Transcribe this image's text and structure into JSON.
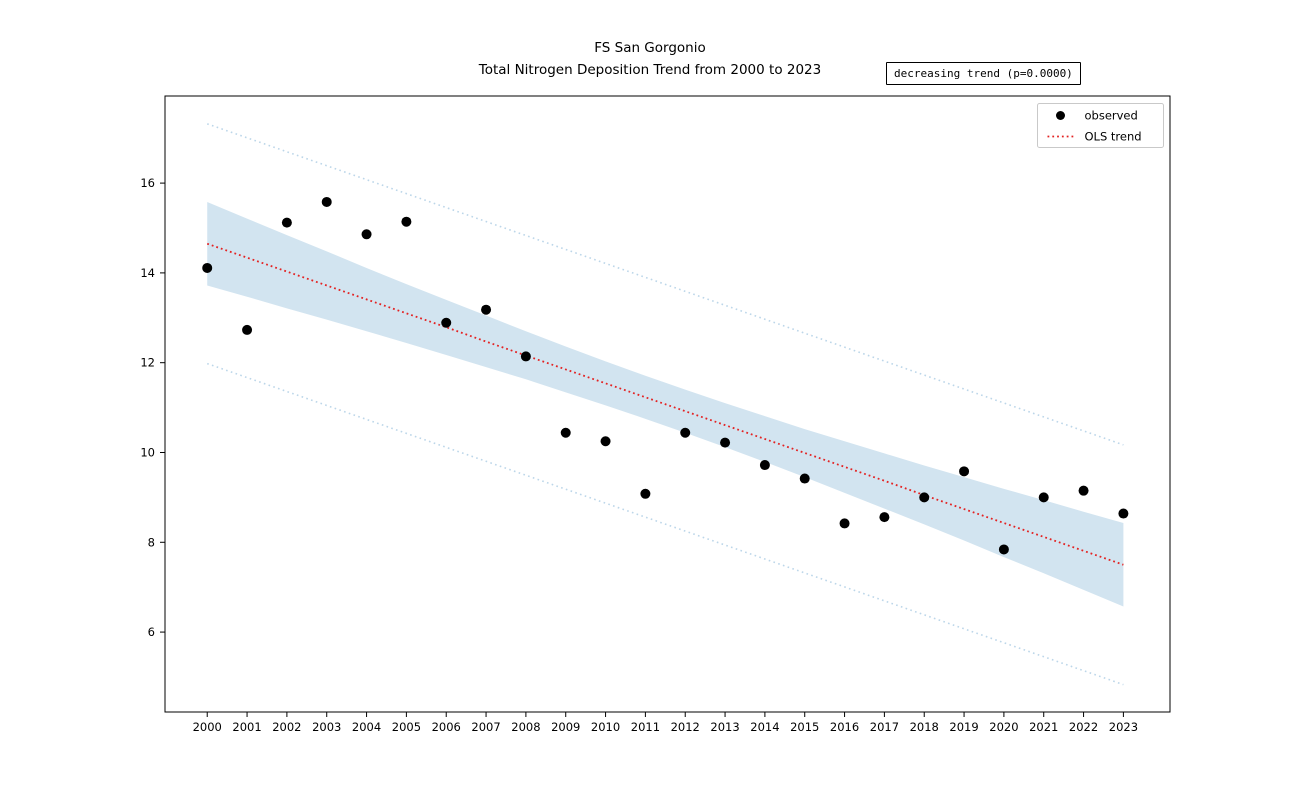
{
  "figure": {
    "title_line1": "FS San Gorgonio",
    "title_line2": "Total Nitrogen Deposition Trend from 2000 to 2023",
    "annotation": "decreasing trend (p=0.0000)"
  },
  "chart_data": {
    "type": "scatter",
    "title": "FS San Gorgonio\nTotal Nitrogen Deposition Trend from 2000 to 2023",
    "xlabel": "",
    "ylabel": "",
    "annotation": "decreasing trend (p=0.0000)",
    "x": [
      2000,
      2001,
      2002,
      2003,
      2004,
      2005,
      2006,
      2007,
      2008,
      2009,
      2010,
      2011,
      2012,
      2013,
      2014,
      2015,
      2016,
      2017,
      2018,
      2019,
      2020,
      2021,
      2022,
      2023
    ],
    "series": [
      {
        "name": "observed",
        "type": "scatter",
        "values": [
          14.11,
          12.73,
          15.12,
          15.58,
          14.86,
          15.14,
          12.89,
          13.18,
          12.14,
          10.44,
          10.25,
          9.08,
          10.44,
          10.22,
          9.72,
          9.42,
          8.42,
          8.56,
          9.0,
          9.58,
          7.84,
          9.0,
          9.15,
          8.64
        ]
      },
      {
        "name": "OLS trend",
        "type": "line",
        "style": "dotted",
        "values": [
          14.65,
          14.34,
          14.03,
          13.72,
          13.41,
          13.1,
          12.79,
          12.47,
          12.16,
          11.85,
          11.54,
          11.23,
          10.92,
          10.61,
          10.3,
          9.99,
          9.68,
          9.37,
          9.05,
          8.74,
          8.43,
          8.12,
          7.81,
          7.5
        ]
      }
    ],
    "ci_band": {
      "upper": [
        15.58,
        15.21,
        14.84,
        14.48,
        14.11,
        13.75,
        13.4,
        13.05,
        12.7,
        12.36,
        12.03,
        11.71,
        11.4,
        11.1,
        10.81,
        10.52,
        10.25,
        9.98,
        9.71,
        9.45,
        9.19,
        8.94,
        8.68,
        8.43
      ],
      "lower": [
        13.72,
        13.47,
        13.21,
        12.96,
        12.7,
        12.44,
        12.17,
        11.9,
        11.63,
        11.34,
        11.05,
        10.75,
        10.44,
        10.12,
        9.79,
        9.45,
        9.1,
        8.75,
        8.4,
        8.04,
        7.67,
        7.31,
        6.94,
        6.57
      ]
    },
    "prediction_interval": {
      "upper_start": 17.32,
      "upper_end": 10.17,
      "lower_start": 11.98,
      "lower_end": 4.83
    },
    "xticks": [
      2000,
      2001,
      2002,
      2003,
      2004,
      2005,
      2006,
      2007,
      2008,
      2009,
      2010,
      2011,
      2012,
      2013,
      2014,
      2015,
      2016,
      2017,
      2018,
      2019,
      2020,
      2021,
      2022,
      2023
    ],
    "yticks": [
      6,
      8,
      10,
      12,
      14,
      16
    ],
    "xlim": [
      1998.94,
      2024.17
    ],
    "ylim": [
      4.22,
      17.94
    ],
    "grid": false,
    "legend": {
      "position": "upper right",
      "entries": [
        "observed",
        "OLS trend"
      ]
    },
    "colors": {
      "observed": "#000000",
      "trend": "#e32222",
      "band": "#d2e4f0",
      "prediction": "#bcd6e9",
      "frame": "#000000",
      "legend_border": "#c9c9c9"
    }
  }
}
